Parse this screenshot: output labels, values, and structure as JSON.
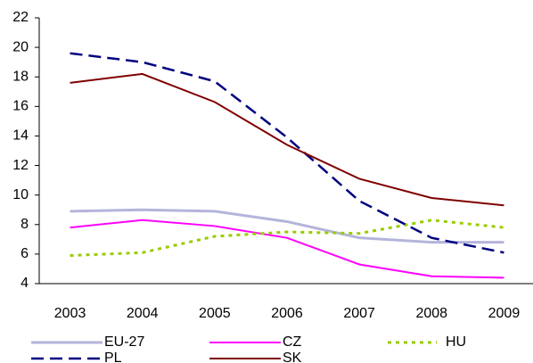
{
  "chart_data": {
    "type": "line",
    "categories": [
      "2003",
      "2004",
      "2005",
      "2006",
      "2007",
      "2008",
      "2009"
    ],
    "series": [
      {
        "name": "EU-27",
        "color": "#b4b4dc",
        "values": [
          8.9,
          9.0,
          8.9,
          8.2,
          7.1,
          6.8,
          6.8
        ]
      },
      {
        "name": "CZ",
        "color": "#ff00ff",
        "values": [
          7.8,
          8.3,
          7.9,
          7.1,
          5.3,
          4.5,
          4.4
        ]
      },
      {
        "name": "HU",
        "color": "#99cc00",
        "values": [
          5.9,
          6.1,
          7.2,
          7.5,
          7.4,
          8.3,
          7.8
        ]
      },
      {
        "name": "PL",
        "color": "#000080",
        "values": [
          19.6,
          19.0,
          17.7,
          13.9,
          9.6,
          7.1,
          6.1
        ]
      },
      {
        "name": "SK",
        "color": "#800000",
        "values": [
          17.6,
          18.2,
          16.3,
          13.4,
          11.1,
          9.8,
          9.3
        ]
      }
    ],
    "ylim": [
      4,
      22
    ],
    "yticks": [
      4,
      6,
      8,
      10,
      12,
      14,
      16,
      18,
      20,
      22
    ]
  }
}
